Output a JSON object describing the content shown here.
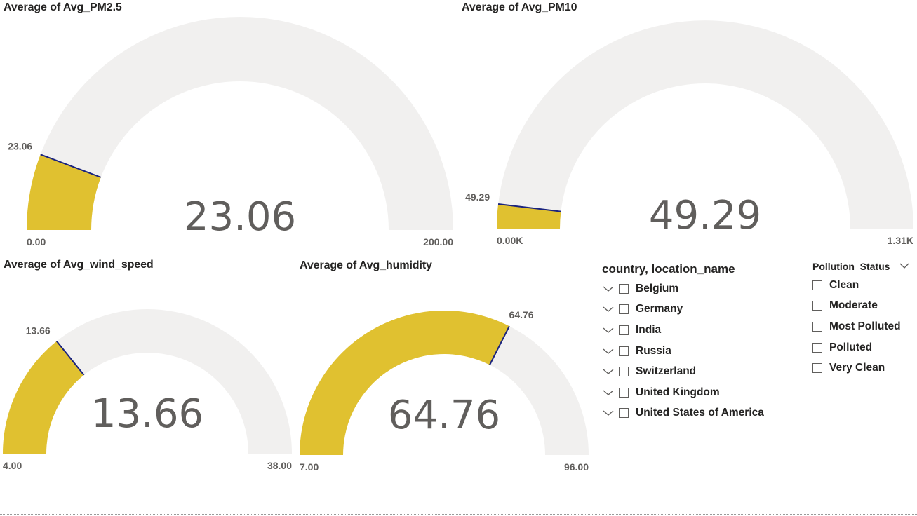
{
  "gauges": {
    "pm25": {
      "title": "Average of Avg_PM2.5",
      "value": 23.06,
      "min": 0,
      "max": 200,
      "value_label": "23.06",
      "min_label": "0.00",
      "max_label": "200.00"
    },
    "pm10": {
      "title": "Average of Avg_PM10",
      "value": 49.29,
      "min": 0,
      "max": 1310,
      "value_label": "49.29",
      "min_label": "0.00K",
      "max_label": "1.31K"
    },
    "wind": {
      "title": "Average of Avg_wind_speed",
      "value": 13.66,
      "min": 4,
      "max": 38,
      "value_label": "13.66",
      "min_label": "4.00",
      "max_label": "38.00"
    },
    "humidity": {
      "title": "Average of Avg_humidity",
      "value": 64.76,
      "min": 7,
      "max": 96,
      "value_label": "64.76",
      "min_label": "7.00",
      "max_label": "96.00"
    }
  },
  "colors": {
    "fill": "#e0c130",
    "track": "#f1f0ef",
    "needle": "#1a237e"
  },
  "country_slicer": {
    "header": "country, location_name",
    "items": [
      "Belgium",
      "Germany",
      "India",
      "Russia",
      "Switzerland",
      "United Kingdom",
      "United States of America"
    ]
  },
  "pollution_slicer": {
    "header": "Pollution_Status",
    "items": [
      "Clean",
      "Moderate",
      "Most Polluted",
      "Polluted",
      "Very Clean"
    ]
  }
}
